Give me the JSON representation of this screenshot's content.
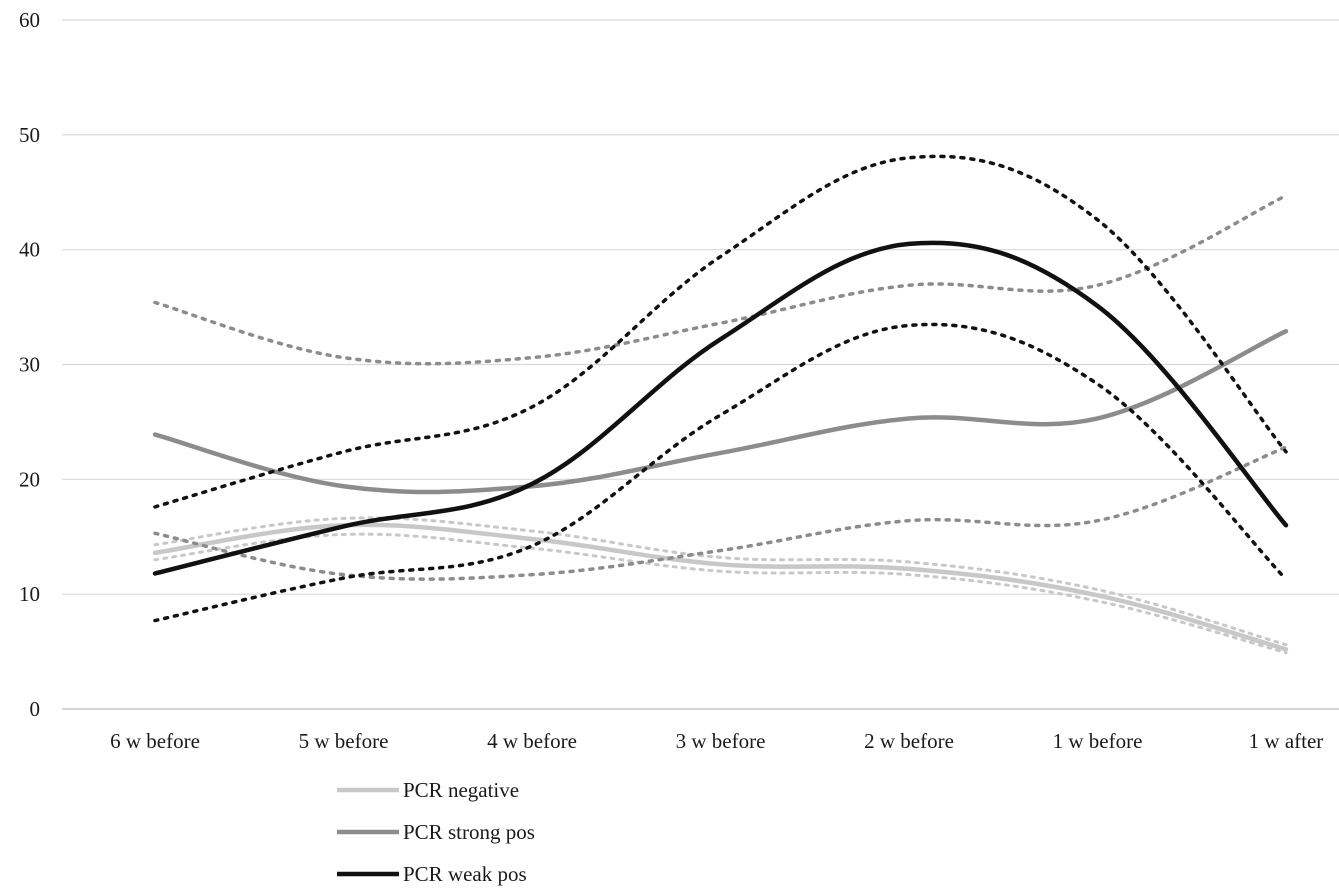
{
  "chart_data": {
    "type": "line",
    "title": "",
    "xlabel": "",
    "ylabel": "",
    "ylim": [
      0,
      60
    ],
    "yticks": [
      "0",
      "10",
      "20",
      "30",
      "40",
      "50",
      "60"
    ],
    "grid": "horizontal",
    "legend_position": "bottom-left",
    "categories": [
      "6 w before",
      "5 w before",
      "4 w before",
      "3 w before",
      "2 w before",
      "1 w before",
      "1 w after"
    ],
    "series": [
      {
        "name": "PCR negative",
        "color": "#c8c8c8",
        "style": "solid",
        "values": [
          13.6,
          16.0,
          14.8,
          12.6,
          12.2,
          9.9,
          5.2
        ],
        "ci_lower": [
          13.0,
          15.2,
          14.0,
          12.0,
          11.7,
          9.4,
          4.9
        ],
        "ci_upper": [
          14.3,
          16.6,
          15.5,
          13.2,
          12.8,
          10.4,
          5.6
        ]
      },
      {
        "name": "PCR strong pos",
        "color": "#8c8c8c",
        "style": "solid",
        "values": [
          23.9,
          19.4,
          19.4,
          22.3,
          25.3,
          25.3,
          32.9
        ],
        "ci_lower": [
          15.3,
          11.7,
          11.7,
          13.8,
          16.4,
          16.4,
          22.8
        ],
        "ci_upper": [
          35.4,
          30.6,
          30.6,
          33.6,
          36.9,
          36.9,
          44.7
        ]
      },
      {
        "name": "PCR weak pos",
        "color": "#111111",
        "style": "solid",
        "values": [
          11.8,
          15.9,
          19.6,
          32.2,
          40.5,
          35.1,
          16.0
        ],
        "ci_lower": [
          7.7,
          11.4,
          14.2,
          25.6,
          33.4,
          28.3,
          11.3
        ],
        "ci_upper": [
          17.6,
          22.4,
          26.3,
          39.4,
          48.0,
          42.6,
          22.4
        ]
      }
    ]
  }
}
